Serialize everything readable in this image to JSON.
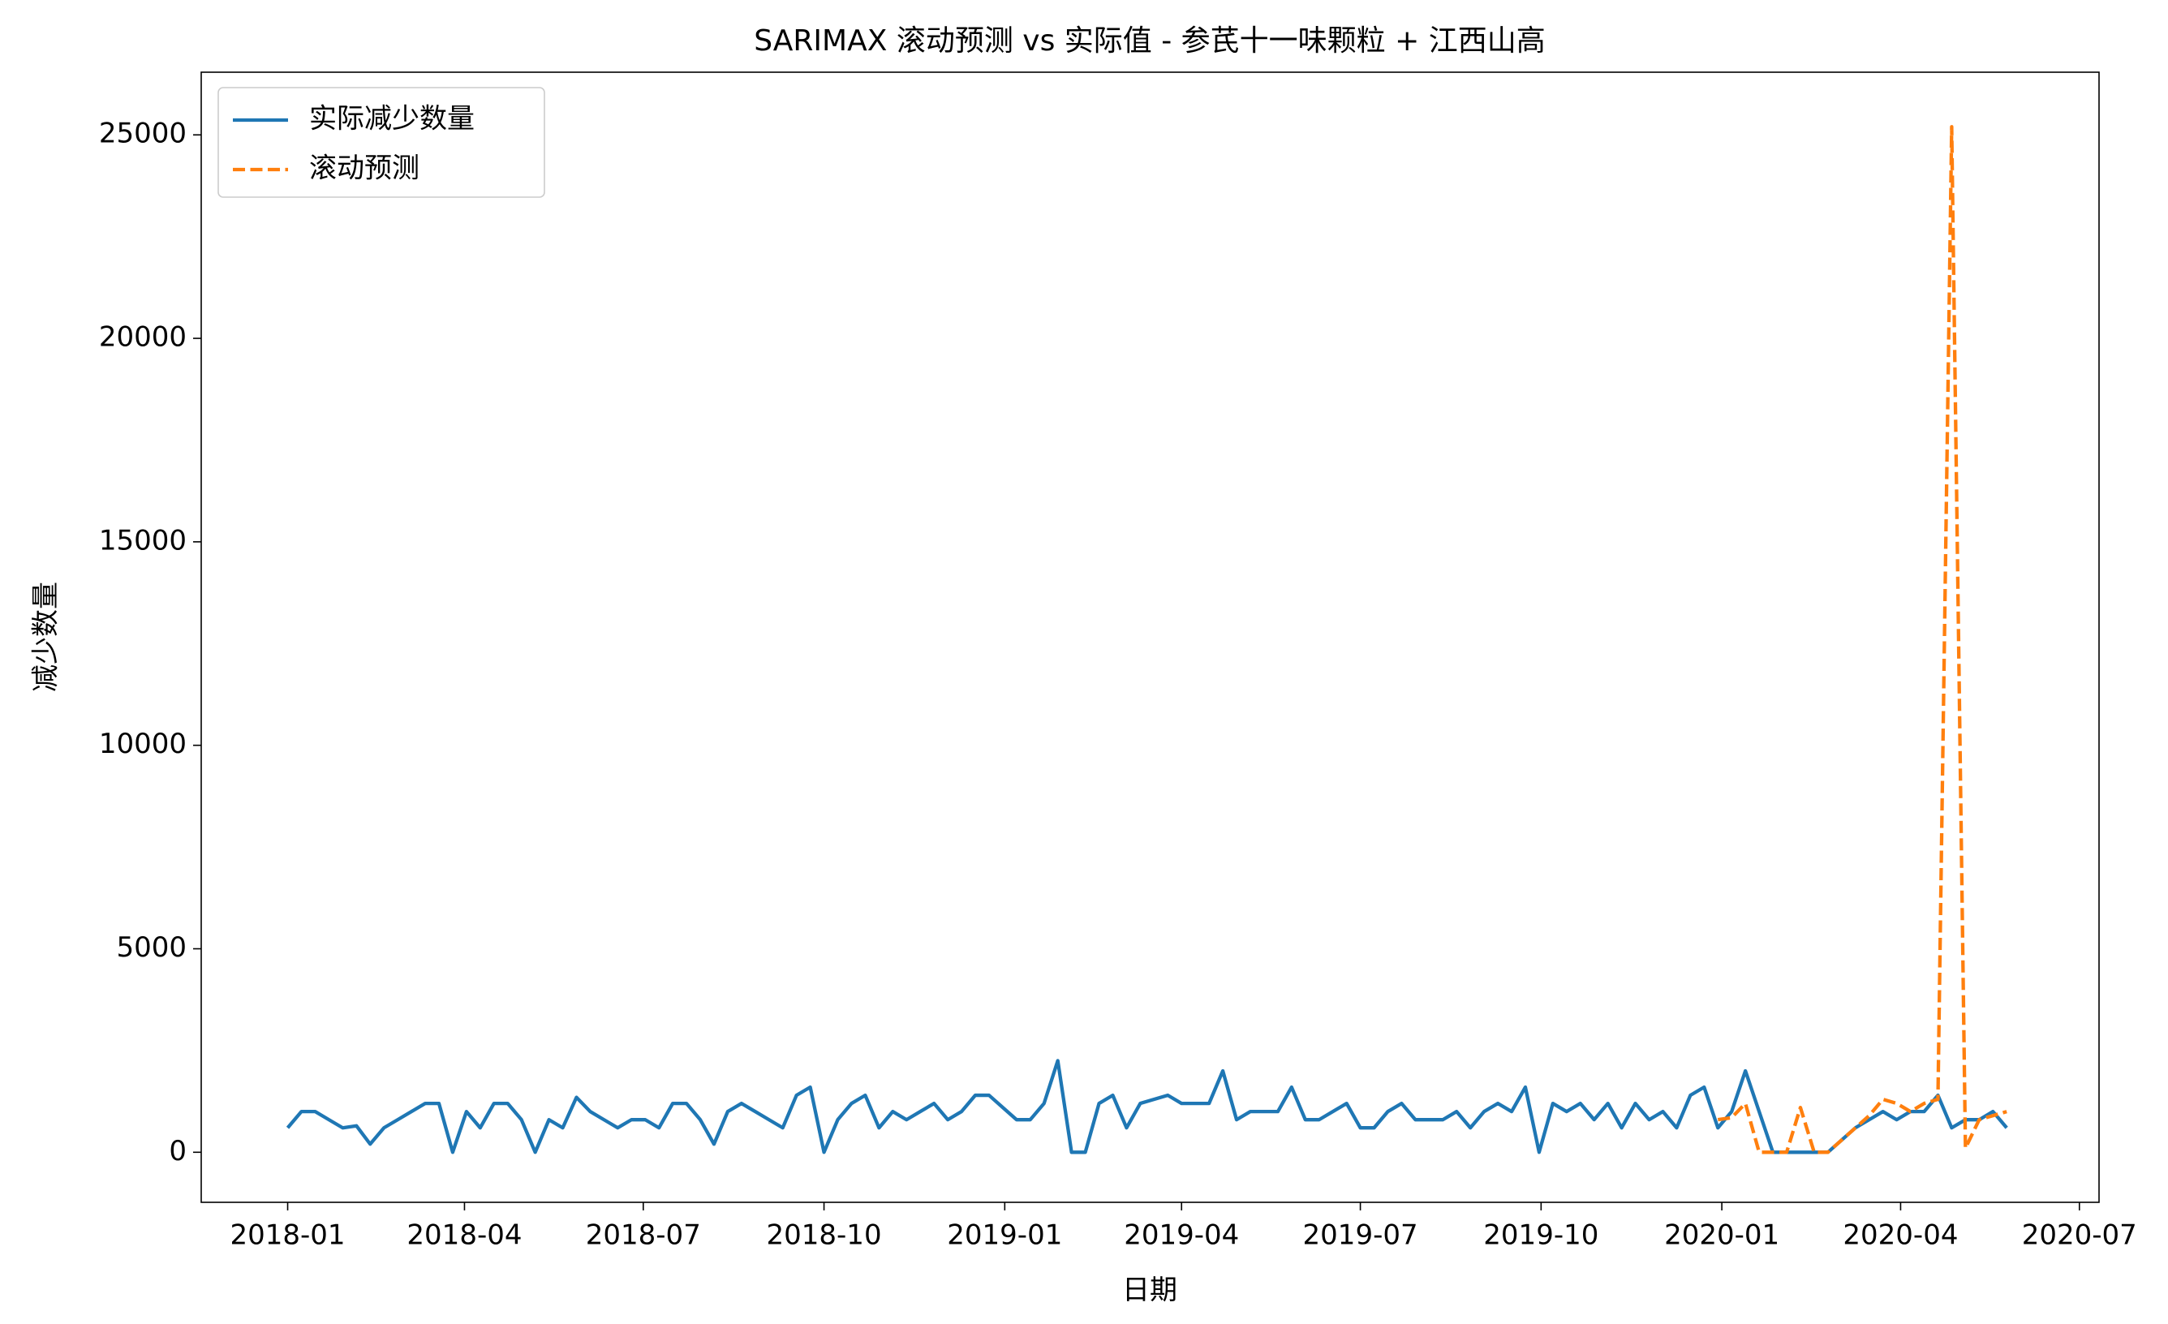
{
  "chart_data": {
    "type": "line",
    "title": "SARIMAX 滚动预测 vs 实际值 - 参芪十一味颗粒 + 江西山高",
    "x_label": "日期",
    "y_label": "减少数量",
    "x": [
      "2018-01-01",
      "2018-01-08",
      "2018-01-15",
      "2018-01-22",
      "2018-01-29",
      "2018-02-05",
      "2018-02-12",
      "2018-02-19",
      "2018-02-26",
      "2018-03-05",
      "2018-03-12",
      "2018-03-19",
      "2018-03-26",
      "2018-04-02",
      "2018-04-09",
      "2018-04-16",
      "2018-04-23",
      "2018-04-30",
      "2018-05-07",
      "2018-05-14",
      "2018-05-21",
      "2018-05-28",
      "2018-06-04",
      "2018-06-11",
      "2018-06-18",
      "2018-06-25",
      "2018-07-02",
      "2018-07-09",
      "2018-07-16",
      "2018-07-23",
      "2018-07-30",
      "2018-08-06",
      "2018-08-13",
      "2018-08-20",
      "2018-08-27",
      "2018-09-03",
      "2018-09-10",
      "2018-09-17",
      "2018-09-24",
      "2018-10-01",
      "2018-10-08",
      "2018-10-15",
      "2018-10-22",
      "2018-10-29",
      "2018-11-05",
      "2018-11-12",
      "2018-11-19",
      "2018-11-26",
      "2018-12-03",
      "2018-12-10",
      "2018-12-17",
      "2018-12-24",
      "2018-12-31",
      "2019-01-07",
      "2019-01-14",
      "2019-01-21",
      "2019-01-28",
      "2019-02-04",
      "2019-02-11",
      "2019-02-18",
      "2019-02-25",
      "2019-03-04",
      "2019-03-11",
      "2019-03-18",
      "2019-03-25",
      "2019-04-01",
      "2019-04-08",
      "2019-04-15",
      "2019-04-22",
      "2019-04-29",
      "2019-05-06",
      "2019-05-13",
      "2019-05-20",
      "2019-05-27",
      "2019-06-03",
      "2019-06-10",
      "2019-06-17",
      "2019-06-24",
      "2019-07-01",
      "2019-07-08",
      "2019-07-15",
      "2019-07-22",
      "2019-07-29",
      "2019-08-05",
      "2019-08-12",
      "2019-08-19",
      "2019-08-26",
      "2019-09-02",
      "2019-09-09",
      "2019-09-16",
      "2019-09-23",
      "2019-09-30",
      "2019-10-07",
      "2019-10-14",
      "2019-10-21",
      "2019-10-28",
      "2019-11-04",
      "2019-11-11",
      "2019-11-18",
      "2019-11-25",
      "2019-12-02",
      "2019-12-09",
      "2019-12-16",
      "2019-12-23",
      "2019-12-30",
      "2020-01-06",
      "2020-01-13",
      "2020-01-20",
      "2020-01-27",
      "2020-02-03",
      "2020-02-10",
      "2020-02-17",
      "2020-02-24",
      "2020-03-02",
      "2020-03-09",
      "2020-03-16",
      "2020-03-23",
      "2020-03-30",
      "2020-04-06",
      "2020-04-13",
      "2020-04-20",
      "2020-04-27",
      "2020-05-04",
      "2020-05-11",
      "2020-05-18",
      "2020-05-25"
    ],
    "series": [
      {
        "name": "实际减少数量",
        "color": "#1f77b4",
        "dash": false,
        "values": [
          600,
          1000,
          1000,
          800,
          600,
          650,
          200,
          600,
          800,
          1000,
          1200,
          1200,
          0,
          1000,
          600,
          1200,
          1200,
          800,
          0,
          800,
          600,
          1350,
          1000,
          800,
          600,
          800,
          800,
          600,
          1200,
          1200,
          800,
          200,
          1000,
          1200,
          1000,
          800,
          600,
          1400,
          1600,
          0,
          800,
          1200,
          1400,
          600,
          1000,
          800,
          1000,
          1200,
          800,
          1000,
          1400,
          1400,
          1100,
          800,
          800,
          1200,
          2250,
          0,
          0,
          1200,
          1400,
          600,
          1200,
          1300,
          1400,
          1200,
          1200,
          1200,
          2000,
          800,
          1000,
          1000,
          1000,
          1600,
          800,
          800,
          1000,
          1200,
          600,
          600,
          1000,
          1200,
          800,
          800,
          800,
          1000,
          600,
          1000,
          1200,
          1000,
          1600,
          0,
          1200,
          1000,
          1200,
          800,
          1200,
          600,
          1200,
          800,
          1000,
          600,
          1400,
          1600,
          600,
          1000,
          2000,
          1000,
          0,
          0,
          0,
          0,
          0,
          300,
          600,
          800,
          1000,
          800,
          1000,
          1000,
          1400,
          600,
          800,
          800,
          1000,
          600
        ]
      },
      {
        "name": "滚动预测",
        "color": "#ff7f0e",
        "dash": true,
        "values": [
          null,
          null,
          null,
          null,
          null,
          null,
          null,
          null,
          null,
          null,
          null,
          null,
          null,
          null,
          null,
          null,
          null,
          null,
          null,
          null,
          null,
          null,
          null,
          null,
          null,
          null,
          null,
          null,
          null,
          null,
          null,
          null,
          null,
          null,
          null,
          null,
          null,
          null,
          null,
          null,
          null,
          null,
          null,
          null,
          null,
          null,
          null,
          null,
          null,
          null,
          null,
          null,
          null,
          null,
          null,
          null,
          null,
          null,
          null,
          null,
          null,
          null,
          null,
          null,
          null,
          null,
          null,
          null,
          null,
          null,
          null,
          null,
          null,
          null,
          null,
          null,
          null,
          null,
          null,
          null,
          null,
          null,
          null,
          null,
          null,
          null,
          null,
          null,
          null,
          null,
          null,
          null,
          null,
          null,
          null,
          null,
          null,
          null,
          null,
          null,
          null,
          null,
          null,
          null,
          800,
          850,
          1200,
          0,
          0,
          0,
          1100,
          0,
          0,
          300,
          600,
          900,
          1300,
          1200,
          1000,
          1200,
          1300,
          25200,
          100,
          800,
          900,
          1000
        ]
      }
    ],
    "xlim": [
      "2017-11-18",
      "2020-07-11"
    ],
    "xticks": [
      {
        "value": "2018-01-01",
        "label": "2018-01"
      },
      {
        "value": "2018-04-01",
        "label": "2018-04"
      },
      {
        "value": "2018-07-01",
        "label": "2018-07"
      },
      {
        "value": "2018-10-01",
        "label": "2018-10"
      },
      {
        "value": "2019-01-01",
        "label": "2019-01"
      },
      {
        "value": "2019-04-01",
        "label": "2019-04"
      },
      {
        "value": "2019-07-01",
        "label": "2019-07"
      },
      {
        "value": "2019-10-01",
        "label": "2019-10"
      },
      {
        "value": "2020-01-01",
        "label": "2020-01"
      },
      {
        "value": "2020-04-01",
        "label": "2020-04"
      },
      {
        "value": "2020-07-01",
        "label": "2020-07"
      }
    ],
    "ylim": [
      -1230,
      26540
    ],
    "yticks": [
      0,
      5000,
      10000,
      15000,
      20000,
      25000
    ],
    "grid": false,
    "legend": "upper left"
  }
}
